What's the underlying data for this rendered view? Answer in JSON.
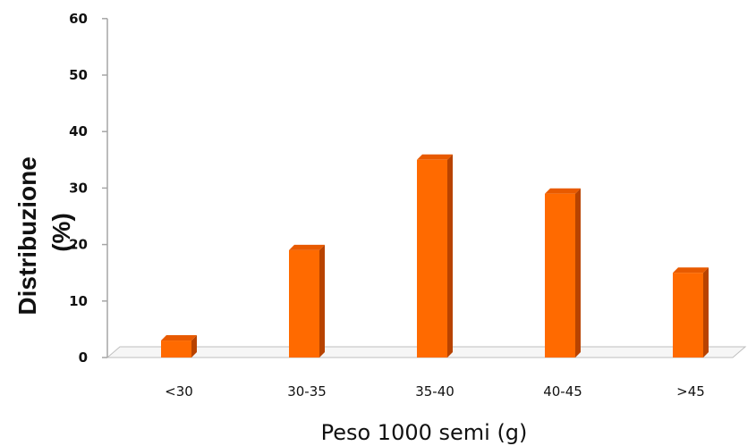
{
  "chart_data": {
    "type": "bar",
    "categories": [
      "<30",
      "30-35",
      "35-40",
      "40-45",
      ">45"
    ],
    "values": [
      3,
      19,
      35,
      29,
      15
    ],
    "xlabel": "Peso 1000 semi (g)",
    "ylabel": "Distribuzione (%)",
    "ylim": [
      0,
      60
    ],
    "yticks": [
      0,
      10,
      20,
      30,
      40,
      50,
      60
    ],
    "grid": false,
    "legend": "none",
    "bar_color": "#FF6A00",
    "bar_side_color": "#B84300",
    "bar_top_color": "#E85A00"
  }
}
